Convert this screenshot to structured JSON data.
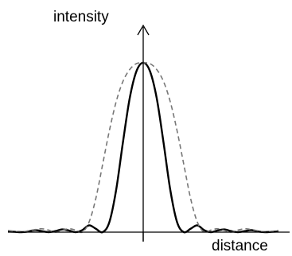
{
  "chart_data": {
    "type": "line",
    "title": "",
    "xlabel": "distance",
    "ylabel": "intensity",
    "xlim": [
      -10,
      10
    ],
    "ylim": [
      0,
      1.15
    ],
    "grid": false,
    "legend": "none",
    "series": [
      {
        "style": "solid",
        "color": "#000000",
        "x": [
          -10,
          -9.5,
          -9,
          -8.5,
          -8,
          -7.5,
          -7,
          -6.5,
          -6,
          -5.5,
          -5,
          -4.5,
          -4,
          -3.5,
          -3,
          -2.5,
          -2,
          -1.5,
          -1,
          -0.5,
          0,
          0.5,
          1,
          1.5,
          2,
          2.5,
          3,
          3.5,
          4,
          4.5,
          5,
          5.5,
          6,
          6.5,
          7,
          7.5,
          8,
          8.5,
          9,
          9.5,
          10
        ],
        "y": [
          0.004,
          0.002,
          0.0,
          0.004,
          0.012,
          0.006,
          0.0,
          0.006,
          0.016,
          0.01,
          0.0,
          0.012,
          0.04,
          0.02,
          0.0,
          0.06,
          0.25,
          0.53,
          0.79,
          0.95,
          1.0,
          0.95,
          0.79,
          0.53,
          0.25,
          0.06,
          0.0,
          0.02,
          0.04,
          0.012,
          0.0,
          0.01,
          0.016,
          0.006,
          0.0,
          0.006,
          0.012,
          0.004,
          0.0,
          0.002,
          0.004
        ]
      },
      {
        "style": "dashed",
        "color": "#777777",
        "x": [
          -10,
          -9.5,
          -9,
          -8.5,
          -8,
          -7.5,
          -7,
          -6.5,
          -6,
          -5.5,
          -5,
          -4.5,
          -4,
          -3.5,
          -3,
          -2.5,
          -2,
          -1.5,
          -1,
          -0.5,
          0,
          0.5,
          1,
          1.5,
          2,
          2.5,
          3,
          3.5,
          4,
          4.5,
          5,
          5.5,
          6,
          6.5,
          7,
          7.5,
          8,
          8.5,
          9,
          9.5,
          10
        ],
        "y": [
          0.01,
          0.005,
          0.0,
          0.008,
          0.015,
          0.02,
          0.012,
          0.0,
          0.01,
          0.02,
          0.012,
          0.0,
          0.06,
          0.2,
          0.4,
          0.6,
          0.77,
          0.89,
          0.96,
          0.995,
          1.0,
          0.995,
          0.96,
          0.89,
          0.77,
          0.6,
          0.4,
          0.2,
          0.06,
          0.0,
          0.012,
          0.02,
          0.01,
          0.0,
          0.012,
          0.02,
          0.015,
          0.008,
          0.0,
          0.005,
          0.01
        ]
      }
    ]
  }
}
